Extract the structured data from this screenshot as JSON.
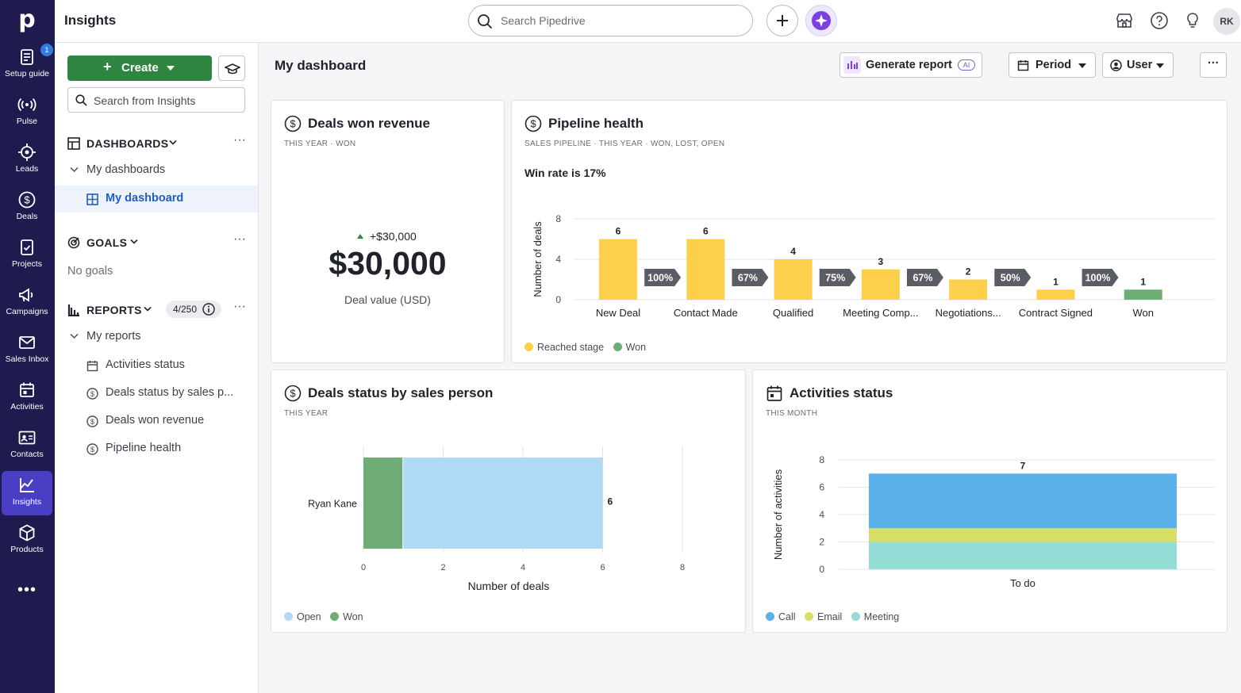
{
  "app": {
    "title": "Insights",
    "logo": "p"
  },
  "rail": {
    "setup_badge": "1",
    "items": [
      {
        "label": "Setup guide",
        "icon": "clipboard-icon"
      },
      {
        "label": "Pulse",
        "icon": "pulse-icon"
      },
      {
        "label": "Leads",
        "icon": "target-icon"
      },
      {
        "label": "Deals",
        "icon": "dollar-icon"
      },
      {
        "label": "Projects",
        "icon": "projects-icon"
      },
      {
        "label": "Campaigns",
        "icon": "megaphone-icon"
      },
      {
        "label": "Sales Inbox",
        "icon": "mail-icon"
      },
      {
        "label": "Activities",
        "icon": "calendar-icon"
      },
      {
        "label": "Contacts",
        "icon": "contact-card-icon"
      },
      {
        "label": "Insights",
        "icon": "chart-icon"
      },
      {
        "label": "Products",
        "icon": "box-icon"
      }
    ],
    "more": "•••"
  },
  "topbar": {
    "search_placeholder": "Search Pipedrive",
    "avatar": "RK"
  },
  "sidebar": {
    "create_label": "Create",
    "search_placeholder": "Search from Insights",
    "dashboards_label": "DASHBOARDS",
    "my_dashboards": "My dashboards",
    "my_dashboard": "My dashboard",
    "goals_label": "GOALS",
    "no_goals": "No goals",
    "reports_label": "REPORTS",
    "reports_count": "4/250",
    "my_reports": "My reports",
    "reports": [
      "Activities status",
      "Deals status by sales p...",
      "Deals won revenue",
      "Pipeline health"
    ]
  },
  "dashboard": {
    "title": "My dashboard",
    "generate_report": "Generate report",
    "ai_chip": "AI",
    "period": "Period",
    "user": "User",
    "more": "···"
  },
  "cards": {
    "won_revenue": {
      "title": "Deals won revenue",
      "sub": "THIS YEAR  ·  WON",
      "delta": "+$30,000",
      "value": "$30,000",
      "caption": "Deal value (USD)"
    },
    "pipeline": {
      "title": "Pipeline health",
      "sub": "SALES PIPELINE  ·  THIS YEAR  ·  WON, LOST, OPEN",
      "winrate": "Win rate is 17%",
      "legend": [
        "Reached stage",
        "Won"
      ]
    },
    "status_by_person": {
      "title": "Deals status by sales person",
      "sub": "THIS YEAR",
      "legend": [
        "Open",
        "Won"
      ]
    },
    "activities": {
      "title": "Activities status",
      "sub": "THIS MONTH",
      "legend": [
        "Call",
        "Email",
        "Meeting"
      ]
    }
  },
  "colors": {
    "yellow": "#fdcf4a",
    "green": "#6fad76",
    "light_blue": "#aedaf5",
    "call": "#5bb1ea",
    "email": "#d8df67",
    "meeting": "#94dcd6",
    "grey_tag": "#5b5d66"
  },
  "chart_data": [
    {
      "type": "bar",
      "title": "Pipeline health",
      "ylabel": "Number of deals",
      "ylim": [
        0,
        8
      ],
      "yticks": [
        0,
        4,
        8
      ],
      "categories": [
        "New Deal",
        "Contact Made",
        "Qualified",
        "Meeting Comp...",
        "Negotiations...",
        "Contract Signed",
        "Won"
      ],
      "series": [
        {
          "name": "Reached stage",
          "values": [
            6,
            6,
            4,
            3,
            2,
            1,
            null
          ]
        },
        {
          "name": "Won",
          "values": [
            null,
            null,
            null,
            null,
            null,
            null,
            1
          ]
        }
      ],
      "data_labels": [
        "6",
        "6",
        "4",
        "3",
        "2",
        "1",
        "1"
      ],
      "conversion": [
        "100%",
        "67%",
        "75%",
        "67%",
        "50%",
        "100%"
      ]
    },
    {
      "type": "bar",
      "title": "Deals status by sales person",
      "xlabel": "Number of deals",
      "xlim": [
        0,
        8
      ],
      "xticks": [
        0,
        2,
        4,
        6,
        8
      ],
      "categories": [
        "Ryan Kane"
      ],
      "series": [
        {
          "name": "Won",
          "values": [
            1
          ]
        },
        {
          "name": "Open",
          "values": [
            5
          ]
        }
      ],
      "total_label": "6"
    },
    {
      "type": "bar",
      "title": "Activities status",
      "ylabel": "Number of activities",
      "ylim": [
        0,
        8
      ],
      "yticks": [
        0,
        2,
        4,
        6,
        8
      ],
      "categories": [
        "To do"
      ],
      "series": [
        {
          "name": "Meeting",
          "values": [
            2
          ]
        },
        {
          "name": "Email",
          "values": [
            1
          ]
        },
        {
          "name": "Call",
          "values": [
            4
          ]
        }
      ],
      "total_label": "7"
    }
  ]
}
